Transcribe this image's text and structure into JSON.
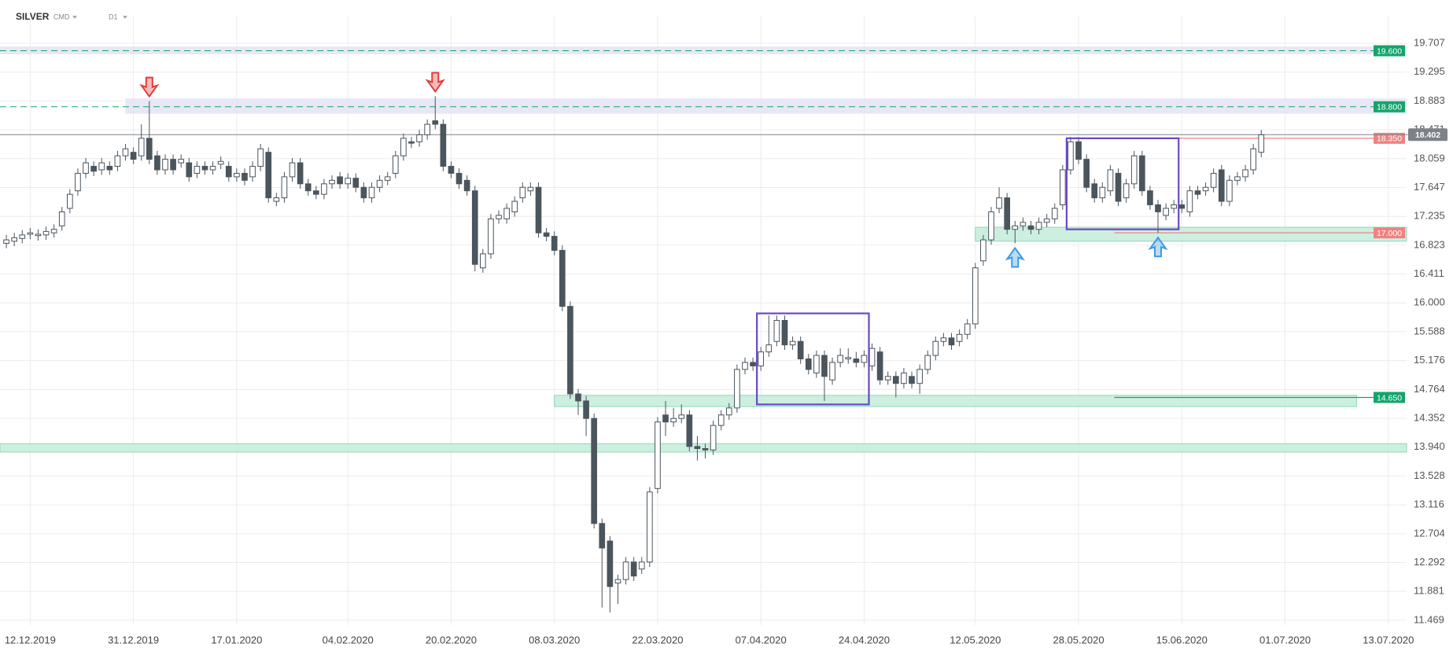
{
  "header": {
    "symbol": "SILVER",
    "market": "CMD",
    "interval": "D1"
  },
  "chart_data": {
    "type": "candlestick",
    "colors": {
      "up_fill": "#ffffff",
      "down_fill": "#4b555d",
      "outline": "#4b555d",
      "grid": "#ececec"
    },
    "grid": true,
    "xlim": [
      -0.8,
      176.3
    ],
    "xticks": [
      {
        "value": 3,
        "label": "12.12.2019"
      },
      {
        "value": 16,
        "label": "31.12.2019"
      },
      {
        "value": 29,
        "label": "17.01.2020"
      },
      {
        "value": 43,
        "label": "04.02.2020"
      },
      {
        "value": 56,
        "label": "20.02.2020"
      },
      {
        "value": 69,
        "label": "08.03.2020"
      },
      {
        "value": 82,
        "label": "22.03.2020"
      },
      {
        "value": 95,
        "label": "07.04.2020"
      },
      {
        "value": 108,
        "label": "24.04.2020"
      },
      {
        "value": 122,
        "label": "12.05.2020"
      },
      {
        "value": 135,
        "label": "28.05.2020"
      },
      {
        "value": 148,
        "label": "15.06.2020"
      },
      {
        "value": 161,
        "label": "01.07.2020"
      },
      {
        "value": 174,
        "label": "13.07.2020"
      }
    ],
    "ylim": [
      11.4,
      20.1
    ],
    "yticks": [
      19.707,
      19.295,
      18.883,
      18.471,
      18.059,
      17.647,
      17.235,
      16.823,
      16.411,
      {
        "value": 16,
        "label": "16.000"
      },
      15.588,
      15.176,
      14.764,
      14.352,
      {
        "value": 13.94,
        "label": "13.940"
      },
      13.528,
      13.116,
      12.704,
      12.292,
      11.881,
      11.469
    ],
    "open": [
      16.85,
      16.88,
      16.92,
      16.98,
      16.96,
      16.97,
      17.0,
      17.1,
      17.35,
      17.6,
      17.85,
      17.95,
      17.9,
      17.95,
      17.95,
      18.1,
      18.15,
      18.1,
      18.35,
      18.1,
      17.9,
      18.05,
      18.0,
      18.0,
      17.85,
      17.95,
      17.9,
      17.98,
      17.95,
      17.8,
      17.85,
      17.8,
      17.95,
      18.15,
      17.45,
      17.5,
      17.8,
      18.0,
      17.7,
      17.6,
      17.55,
      17.7,
      17.8,
      17.7,
      17.78,
      17.65,
      17.5,
      17.65,
      17.75,
      17.85,
      18.1,
      18.3,
      18.3,
      18.4,
      18.6,
      18.55,
      17.95,
      17.85,
      17.75,
      17.6,
      16.5,
      16.7,
      17.2,
      17.2,
      17.3,
      17.5,
      17.6,
      17.65,
      17.0,
      16.95,
      16.75,
      15.95,
      14.7,
      14.6,
      14.35,
      12.85,
      12.6,
      12.0,
      12.05,
      12.3,
      12.2,
      12.3,
      13.35,
      14.4,
      14.3,
      14.35,
      14.4,
      13.95,
      13.92,
      13.9,
      14.25,
      14.4,
      14.5,
      15.05,
      15.15,
      15.1,
      15.3,
      15.45,
      15.75,
      15.4,
      15.45,
      15.2,
      15.0,
      15.25,
      14.9,
      15.15,
      15.2,
      15.2,
      15.15,
      15.1,
      15.3,
      14.9,
      14.95,
      14.85,
      14.95,
      14.85,
      15.05,
      15.25,
      15.45,
      15.5,
      15.45,
      15.55,
      15.7,
      16.6,
      16.9,
      17.35,
      17.5,
      17.05,
      17.1,
      17.1,
      17.05,
      17.15,
      17.2,
      17.4,
      17.9,
      18.3,
      18.05,
      17.7,
      17.5,
      17.6,
      17.85,
      17.5,
      17.7,
      18.1,
      17.6,
      17.4,
      17.25,
      17.35,
      17.4,
      17.3,
      17.6,
      17.6,
      17.65,
      17.9,
      17.45,
      17.75,
      17.8,
      17.9,
      18.15
    ],
    "high": [
      16.97,
      17.0,
      17.04,
      17.07,
      17.05,
      17.09,
      17.12,
      17.37,
      17.62,
      17.92,
      18.07,
      18.02,
      18.07,
      18.02,
      18.17,
      18.27,
      18.22,
      18.55,
      18.88,
      18.17,
      18.12,
      18.12,
      18.12,
      18.07,
      18.02,
      18.02,
      18.02,
      18.09,
      18.02,
      17.92,
      17.92,
      18.02,
      18.27,
      18.22,
      17.57,
      17.87,
      18.07,
      18.07,
      17.77,
      17.67,
      17.77,
      17.82,
      17.87,
      17.85,
      17.85,
      17.72,
      17.72,
      17.82,
      17.87,
      18.17,
      18.42,
      18.37,
      18.47,
      18.62,
      18.95,
      18.62,
      18.02,
      17.92,
      17.82,
      17.67,
      16.77,
      17.27,
      17.32,
      17.42,
      17.52,
      17.72,
      17.72,
      17.72,
      17.07,
      17.02,
      16.82,
      16.02,
      14.77,
      14.67,
      14.42,
      12.92,
      12.67,
      12.12,
      12.37,
      12.37,
      12.37,
      13.37,
      14.37,
      14.6,
      14.5,
      14.55,
      14.47,
      14.1,
      13.99,
      14.32,
      14.47,
      14.57,
      15.12,
      15.22,
      15.22,
      15.37,
      15.82,
      15.82,
      15.82,
      15.52,
      15.52,
      15.27,
      15.32,
      15.32,
      15.22,
      15.35,
      15.35,
      15.3,
      15.32,
      15.42,
      15.37,
      15.02,
      15.02,
      15.07,
      15.02,
      15.12,
      15.32,
      15.52,
      15.57,
      15.57,
      15.62,
      15.77,
      16.57,
      16.97,
      17.37,
      17.65,
      17.57,
      17.17,
      17.22,
      17.17,
      17.22,
      17.27,
      17.42,
      17.97,
      18.37,
      18.37,
      18.12,
      17.77,
      17.72,
      17.97,
      17.92,
      17.77,
      18.17,
      18.17,
      17.67,
      17.47,
      17.42,
      17.47,
      17.47,
      17.67,
      17.67,
      17.72,
      17.92,
      17.97,
      17.82,
      17.87,
      17.97,
      18.27,
      18.47
    ],
    "low": [
      16.78,
      16.81,
      16.85,
      16.91,
      16.89,
      16.9,
      16.93,
      17.03,
      17.28,
      17.53,
      17.78,
      17.81,
      17.83,
      17.83,
      17.88,
      18.03,
      17.98,
      18.03,
      17.98,
      17.83,
      17.83,
      17.83,
      17.93,
      17.73,
      17.78,
      17.83,
      17.83,
      17.91,
      17.73,
      17.73,
      17.68,
      17.73,
      17.88,
      17.43,
      17.38,
      17.43,
      17.73,
      17.63,
      17.53,
      17.48,
      17.48,
      17.63,
      17.63,
      17.63,
      17.58,
      17.43,
      17.43,
      17.58,
      17.68,
      17.78,
      18.03,
      18.21,
      18.23,
      18.33,
      18.48,
      17.88,
      17.78,
      17.63,
      17.53,
      16.45,
      16.43,
      16.63,
      17.13,
      17.13,
      17.23,
      17.43,
      17.53,
      16.93,
      16.88,
      16.68,
      15.88,
      14.63,
      14.4,
      14.1,
      12.78,
      11.65,
      11.58,
      11.7,
      11.98,
      12.03,
      12.13,
      12.23,
      13.28,
      14.1,
      14.23,
      14.28,
      13.88,
      13.75,
      13.78,
      13.83,
      14.18,
      14.33,
      14.43,
      14.98,
      15.03,
      15.03,
      15.23,
      15.38,
      15.33,
      15.33,
      15.13,
      14.98,
      14.93,
      14.6,
      14.83,
      15.08,
      15.13,
      15.08,
      15.08,
      15.03,
      14.83,
      14.83,
      14.65,
      14.78,
      14.78,
      14.7,
      14.98,
      15.18,
      15.38,
      15.33,
      15.38,
      15.48,
      15.63,
      16.53,
      16.83,
      17.28,
      16.98,
      16.85,
      17.03,
      16.98,
      16.98,
      17.08,
      17.13,
      17.33,
      17.83,
      17.98,
      17.58,
      17.43,
      17.43,
      17.53,
      17.38,
      17.43,
      17.63,
      17.53,
      17.33,
      17.0,
      17.18,
      17.28,
      17.28,
      17.23,
      17.48,
      17.53,
      17.58,
      17.38,
      17.38,
      17.68,
      17.73,
      17.83,
      18.08
    ],
    "close": [
      16.9,
      16.93,
      16.97,
      17.0,
      16.98,
      17.02,
      17.05,
      17.3,
      17.55,
      17.85,
      18.0,
      17.88,
      18.0,
      17.9,
      18.1,
      18.2,
      18.05,
      18.35,
      18.05,
      17.9,
      18.05,
      17.9,
      18.05,
      17.8,
      17.95,
      17.9,
      17.95,
      18.02,
      17.8,
      17.85,
      17.75,
      17.95,
      18.2,
      17.5,
      17.5,
      17.8,
      18.0,
      17.7,
      17.6,
      17.55,
      17.7,
      17.75,
      17.7,
      17.78,
      17.65,
      17.5,
      17.65,
      17.75,
      17.8,
      18.1,
      18.35,
      18.28,
      18.4,
      18.55,
      18.55,
      17.95,
      17.85,
      17.7,
      17.6,
      16.55,
      16.7,
      17.2,
      17.25,
      17.35,
      17.45,
      17.65,
      17.65,
      17.0,
      16.95,
      16.75,
      15.95,
      14.7,
      14.6,
      14.35,
      12.85,
      12.5,
      11.95,
      12.05,
      12.3,
      12.1,
      12.3,
      13.3,
      14.3,
      14.3,
      14.35,
      14.4,
      13.95,
      13.92,
      13.9,
      14.25,
      14.4,
      14.5,
      15.05,
      15.15,
      15.1,
      15.3,
      15.4,
      15.75,
      15.4,
      15.45,
      15.2,
      15.05,
      15.25,
      14.95,
      15.15,
      15.25,
      15.22,
      15.15,
      15.25,
      15.35,
      14.9,
      14.95,
      14.85,
      15.0,
      14.85,
      15.05,
      15.25,
      15.45,
      15.5,
      15.4,
      15.55,
      15.7,
      16.5,
      16.9,
      17.3,
      17.5,
      17.05,
      17.1,
      17.15,
      17.05,
      17.15,
      17.2,
      17.35,
      17.9,
      18.3,
      18.05,
      17.65,
      17.5,
      17.65,
      17.9,
      17.45,
      17.7,
      18.1,
      17.6,
      17.4,
      17.3,
      17.35,
      17.4,
      17.35,
      17.6,
      17.55,
      17.65,
      17.85,
      17.45,
      17.75,
      17.8,
      17.9,
      18.2,
      18.4
    ],
    "zones": [
      {
        "start": -0.8,
        "end": 176.3,
        "low": 19.55,
        "high": 19.66,
        "color": "#e6e4f5"
      },
      {
        "start": 15,
        "end": 176.3,
        "low": 18.7,
        "high": 18.92,
        "color": "#e6e4f5"
      },
      {
        "start": 122,
        "end": 176.3,
        "low": 16.88,
        "high": 17.08,
        "color": "#c8eedd"
      },
      {
        "start": 69,
        "end": 170,
        "low": 14.52,
        "high": 14.68,
        "color": "#c8eedd"
      },
      {
        "start": -0.8,
        "end": 176.3,
        "low": 13.87,
        "high": 13.99,
        "color": "#c8eedd"
      }
    ],
    "boxes": [
      {
        "start": 94.5,
        "end": 108.6,
        "low": 14.55,
        "high": 15.85,
        "color": "#6a48c4"
      },
      {
        "start": 133.5,
        "end": 147.6,
        "low": 17.05,
        "high": 18.35,
        "color": "#6a48c4"
      }
    ],
    "levels": [
      {
        "value": 19.6,
        "label": "19.600",
        "start": -0.8,
        "dashed": true,
        "color": "#14a46c"
      },
      {
        "value": 18.8,
        "label": "18.800",
        "start": -0.8,
        "dashed": true,
        "color": "#14a46c"
      },
      {
        "value": 18.35,
        "label": "18.350",
        "start": 147.6,
        "dashed": false,
        "color": "#f08282"
      },
      {
        "value": 17.0,
        "label": "17.000",
        "start": 139.5,
        "dashed": false,
        "color": "#f08282"
      },
      {
        "value": 14.65,
        "label": "14.650",
        "start": 139.5,
        "dashed": false,
        "color": "#14a46c"
      }
    ],
    "last_price": {
      "value": 18.402,
      "label": "18.402",
      "color": "#7d8288"
    },
    "arrows": [
      {
        "x": 18,
        "y": 18.88,
        "dir": "down",
        "color": "#e03c3c"
      },
      {
        "x": 54,
        "y": 18.95,
        "dir": "down",
        "color": "#e03c3c"
      },
      {
        "x": 127,
        "y": 16.85,
        "dir": "up",
        "color": "#3d9ae8"
      },
      {
        "x": 145,
        "y": 17.0,
        "dir": "up",
        "color": "#3d9ae8"
      }
    ]
  }
}
